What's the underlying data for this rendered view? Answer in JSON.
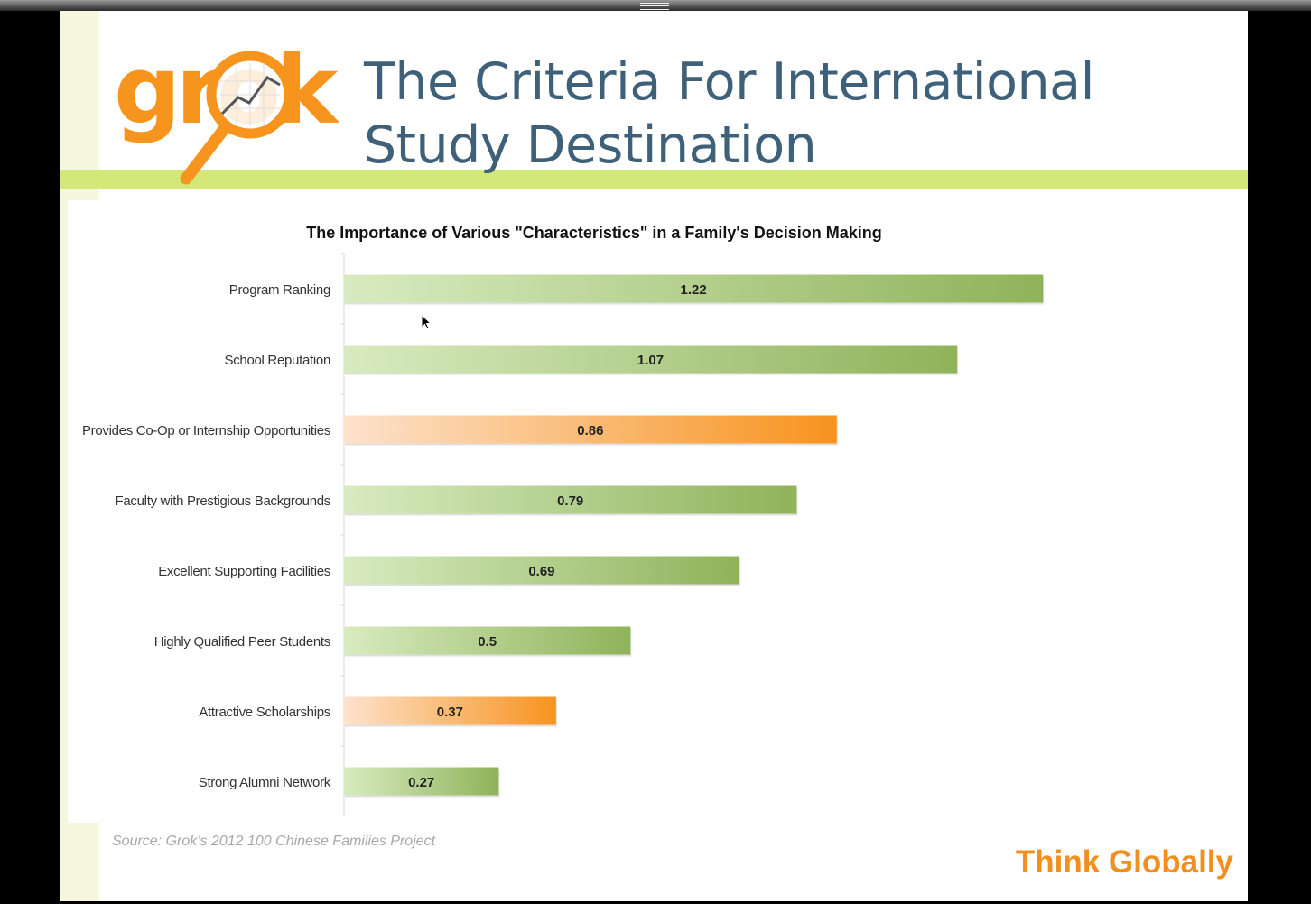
{
  "slide": {
    "title_line1": "The Criteria For International",
    "title_line2": "Study Destination",
    "logo_text": "grok",
    "source": "Source:  Grok’s 2012 100 Chinese Families Project",
    "tagline": "Think Globally"
  },
  "colors": {
    "title": "#3e6179",
    "band": "#d4e879",
    "bar_green": "#8fb35a",
    "bar_orange": "#f7931e",
    "tagline": "#f28f1e"
  },
  "chart_data": {
    "type": "bar",
    "orientation": "horizontal",
    "title": "The Importance of Various \"Characteristics\" in a Family's Decision Making",
    "categories": [
      "Program Ranking",
      "School Reputation",
      "Provides Co-Op or Internship Opportunities",
      "Faculty with Prestigious Backgrounds",
      "Excellent Supporting Facilities",
      "Highly Qualified Peer Students",
      "Attractive Scholarships",
      "Strong Alumni Network"
    ],
    "values": [
      1.22,
      1.07,
      0.86,
      0.79,
      0.69,
      0.5,
      0.37,
      0.27
    ],
    "data_labels": [
      "1.22",
      "1.07",
      "0.86",
      "0.79",
      "0.69",
      "0.5",
      "0.37",
      "0.27"
    ],
    "bar_colors": [
      "green",
      "green",
      "orange",
      "green",
      "green",
      "green",
      "orange",
      "green"
    ],
    "xlabel": "",
    "ylabel": "",
    "xlim": [
      0,
      1.3
    ],
    "grid": false,
    "legend": "none"
  }
}
